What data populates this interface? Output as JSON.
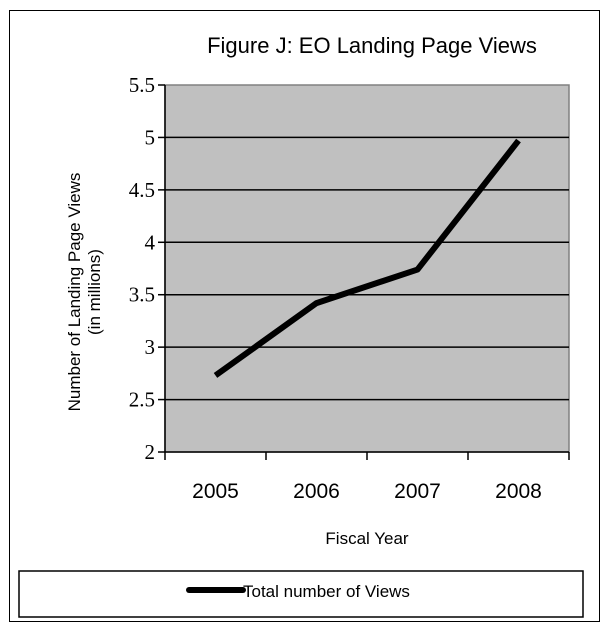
{
  "chart_data": {
    "type": "line",
    "title": "Figure J:  EO Landing Page Views",
    "xlabel": "Fiscal Year",
    "ylabel_lines": [
      "Number of Landing Page Views",
      "(in millions)"
    ],
    "categories": [
      "2005",
      "2006",
      "2007",
      "2008"
    ],
    "series": [
      {
        "name": "Total number of Views",
        "values": [
          2.73,
          3.42,
          3.74,
          4.97
        ],
        "color": "#000000"
      }
    ],
    "ylim": [
      2,
      5.5
    ],
    "yticks": [
      2,
      2.5,
      3,
      3.5,
      4,
      4.5,
      5,
      5.5
    ],
    "ytick_labels": [
      "2",
      "2.5",
      "3",
      "3.5",
      "4",
      "4.5",
      "5",
      "5.5"
    ],
    "grid": true,
    "plot_background": "#c0c0c0",
    "legend_position": "bottom"
  }
}
